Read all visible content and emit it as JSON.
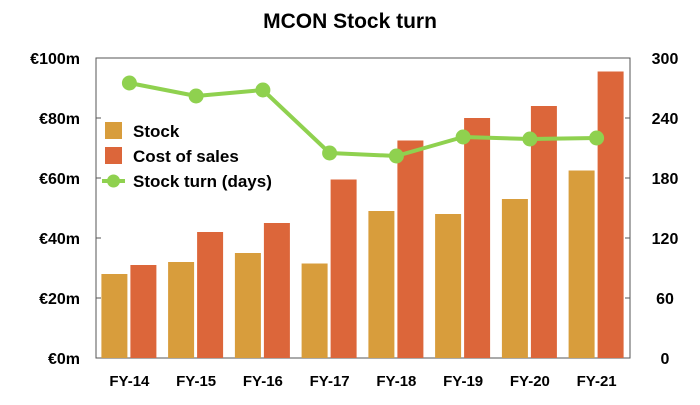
{
  "chart_data": {
    "type": "bar",
    "title": "MCON Stock turn",
    "categories": [
      "FY-14",
      "FY-15",
      "FY-16",
      "FY-17",
      "FY-18",
      "FY-19",
      "FY-20",
      "FY-21"
    ],
    "series": [
      {
        "name": "Stock",
        "kind": "bar",
        "axis": "left",
        "color": "#d89d3c",
        "values": [
          28,
          32,
          35,
          31.5,
          49,
          48,
          53,
          62.5
        ]
      },
      {
        "name": "Cost of sales",
        "kind": "bar",
        "axis": "left",
        "color": "#dc663a",
        "values": [
          31,
          42,
          45,
          59.5,
          72.5,
          80,
          84,
          95.5
        ]
      },
      {
        "name": "Stock turn (days)",
        "kind": "line",
        "axis": "right",
        "color": "#8fd14f",
        "values": [
          275,
          262,
          268,
          205,
          202,
          221,
          219,
          220
        ]
      }
    ],
    "y_left": {
      "ticks": [
        "€0m",
        "€20m",
        "€40m",
        "€60m",
        "€80m",
        "€100m"
      ],
      "range": [
        0,
        100
      ]
    },
    "y_right": {
      "ticks": [
        "0",
        "60",
        "120",
        "180",
        "240",
        "300"
      ],
      "range": [
        0,
        300
      ]
    },
    "legend_position": "left",
    "grid": false
  }
}
